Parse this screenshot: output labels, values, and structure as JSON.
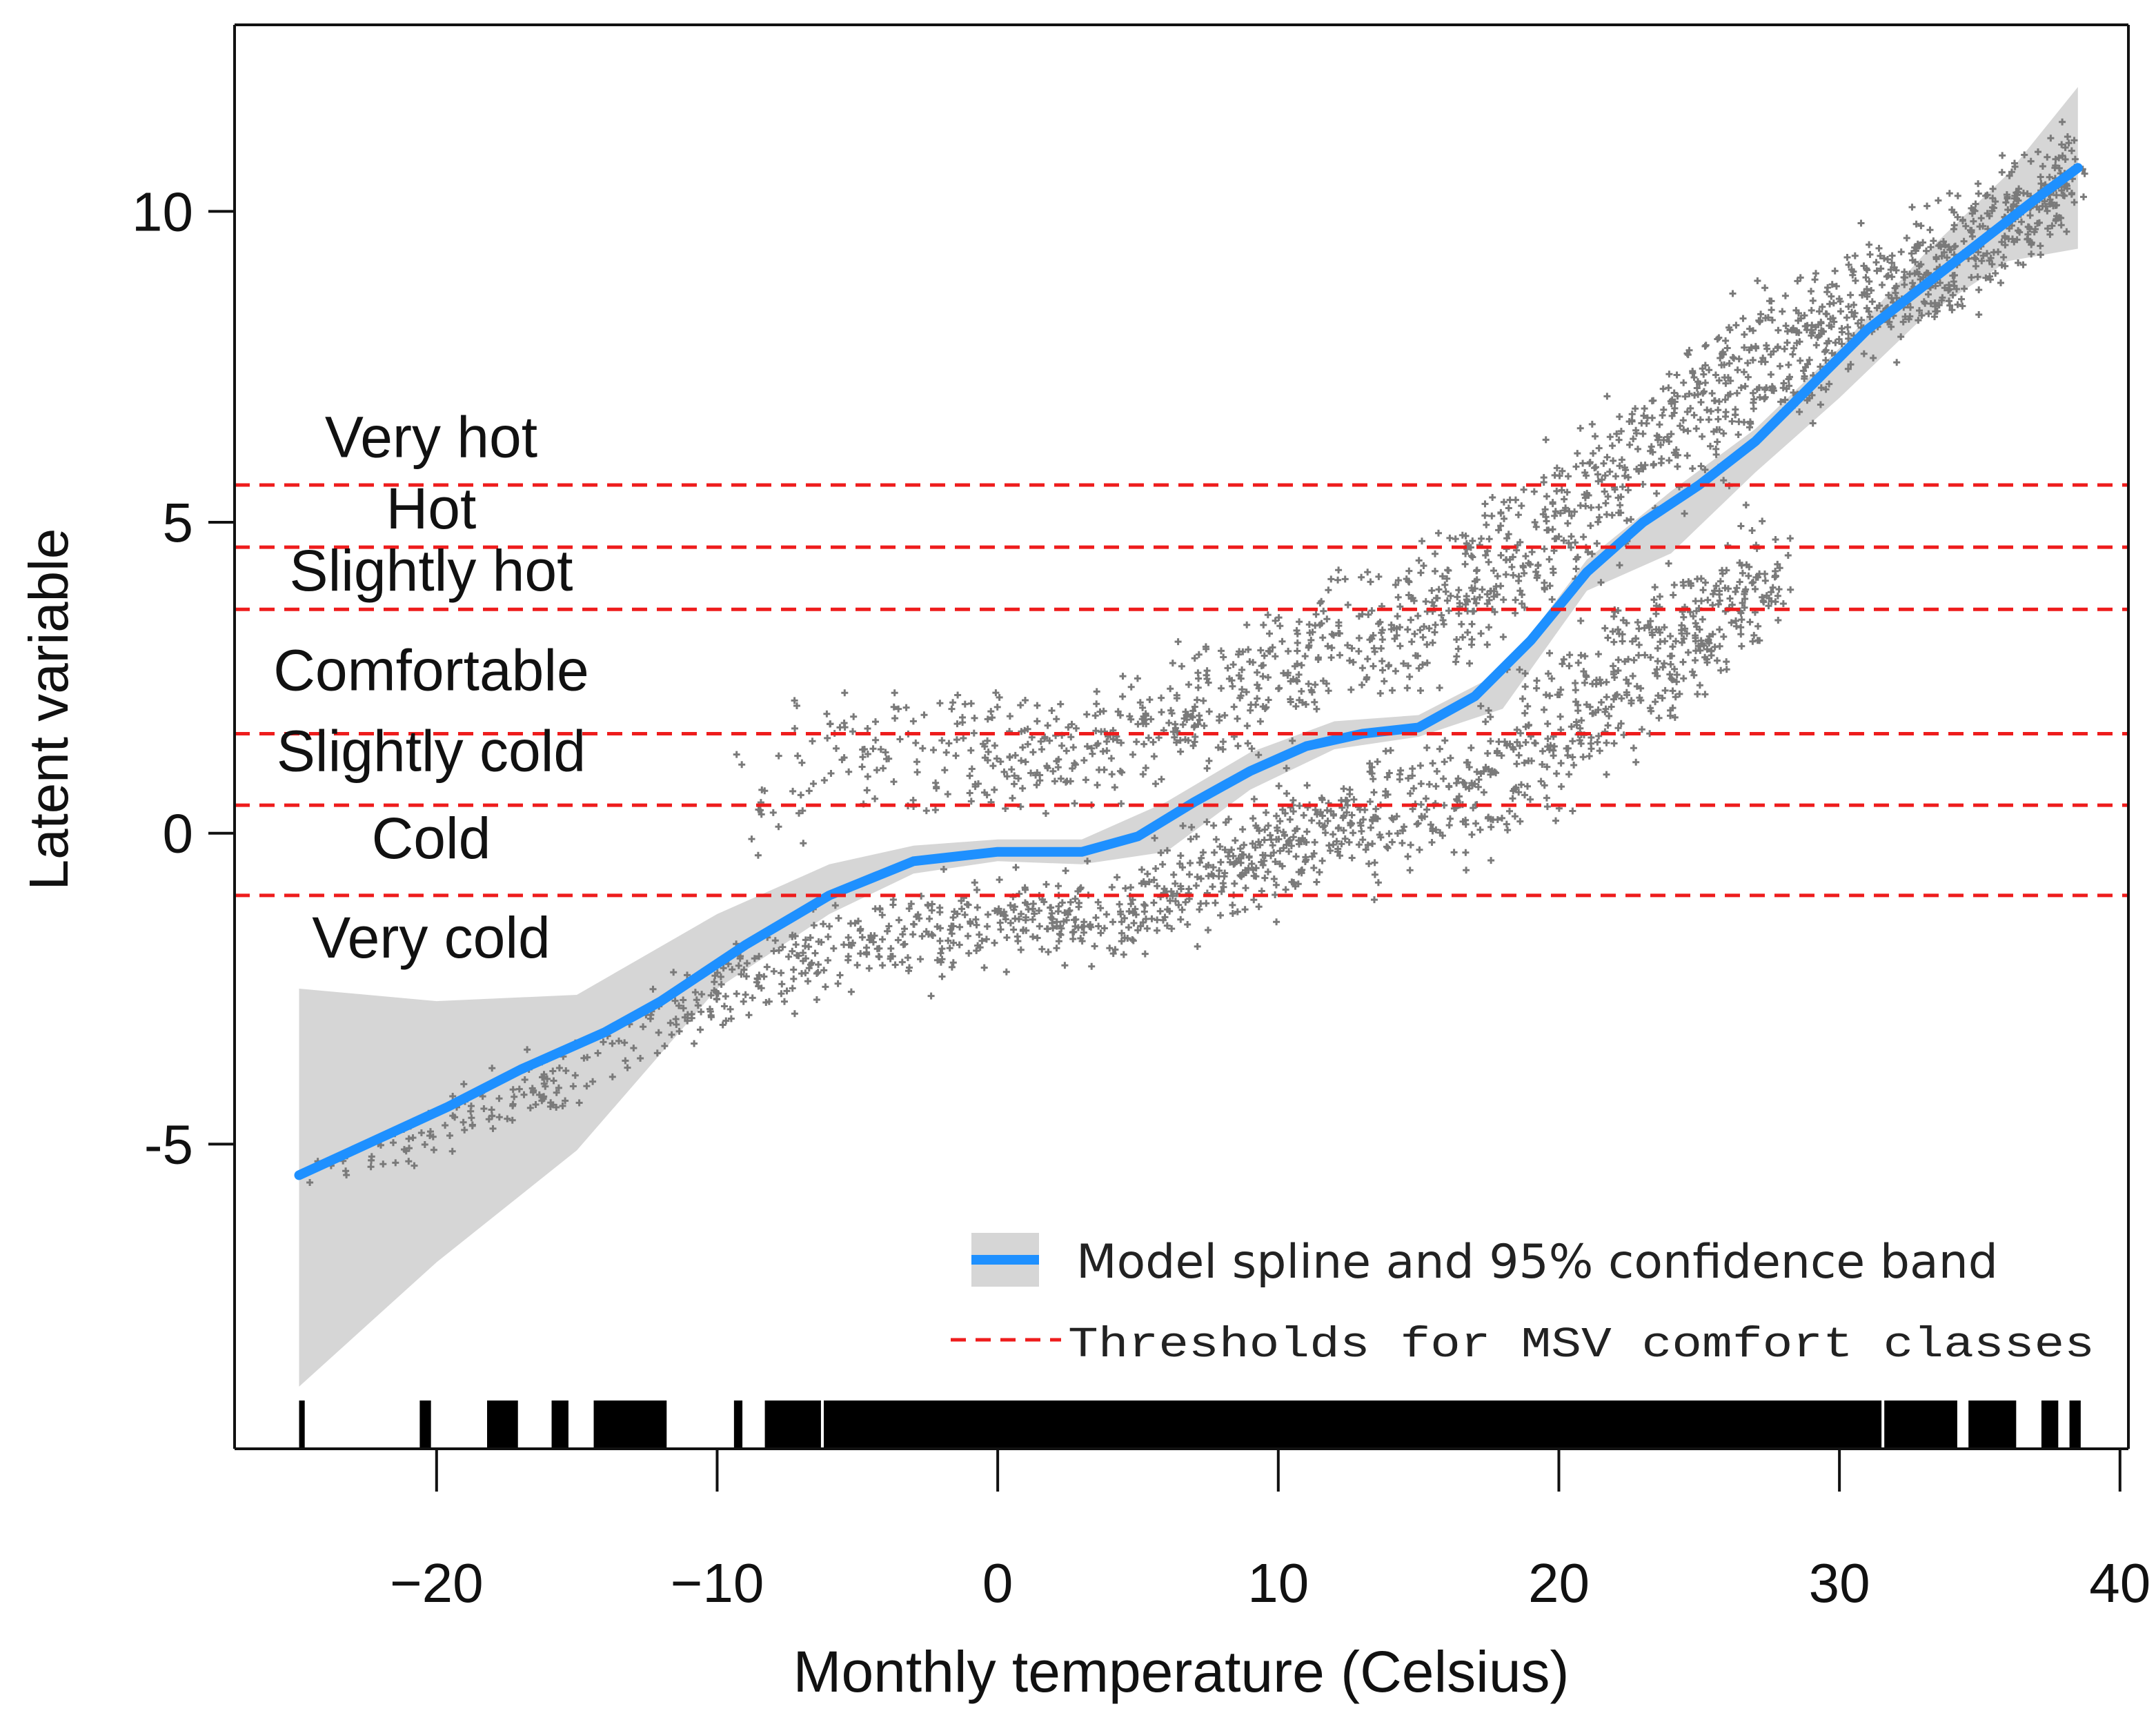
{
  "chart_data": {
    "type": "scatter",
    "xlabel": "Monthly temperature (Celsius)",
    "ylabel": "Latent variable",
    "xlim": [
      -27.2,
      40.3
    ],
    "ylim": [
      -9.9,
      13.0
    ],
    "x_ticks": [
      -20,
      -10,
      0,
      10,
      20,
      30,
      40
    ],
    "x_tick_labels": [
      "−20",
      "−10",
      "0",
      "10",
      "20",
      "30",
      "40"
    ],
    "y_ticks": [
      -5,
      0,
      5,
      10
    ],
    "y_tick_labels": [
      "-5",
      "0",
      "5",
      "10"
    ],
    "thresholds": [
      {
        "name": "Cold / Very cold",
        "y": -1.0
      },
      {
        "name": "Slightly cold / Cold",
        "y": 0.45
      },
      {
        "name": "Comfortable / Slightly cold",
        "y": 1.6
      },
      {
        "name": "Slightly hot / Comfortable",
        "y": 3.6
      },
      {
        "name": "Hot / Slightly hot",
        "y": 4.6
      },
      {
        "name": "Very hot / Hot",
        "y": 5.6
      }
    ],
    "class_labels": [
      {
        "text": "Very hot",
        "y": 6.05
      },
      {
        "text": "Hot",
        "y": 4.9
      },
      {
        "text": "Slightly hot",
        "y": 3.9
      },
      {
        "text": "Comfortable",
        "y": 2.3
      },
      {
        "text": "Slightly cold",
        "y": 1.0
      },
      {
        "text": "Cold",
        "y": -0.4
      },
      {
        "text": "Very cold",
        "y": -2.0
      }
    ],
    "spline": {
      "name": "Model spline",
      "x": [
        -24.9,
        -22,
        -19.6,
        -17,
        -14,
        -12,
        -9,
        -6,
        -3,
        0,
        3,
        5,
        7,
        9,
        11,
        13,
        15,
        17,
        19,
        21,
        23,
        25,
        27,
        29,
        31,
        33,
        35,
        37,
        38.5
      ],
      "y": [
        -5.5,
        -4.9,
        -4.4,
        -3.8,
        -3.2,
        -2.7,
        -1.8,
        -1.0,
        -0.45,
        -0.3,
        -0.3,
        -0.05,
        0.5,
        1.0,
        1.4,
        1.6,
        1.7,
        2.2,
        3.1,
        4.2,
        5.0,
        5.6,
        6.3,
        7.2,
        8.1,
        8.8,
        9.5,
        10.2,
        10.7
      ]
    },
    "band": {
      "name": "95% confidence band",
      "x": [
        -24.9,
        -20,
        -15,
        -10,
        -6,
        -3,
        0,
        3,
        6,
        9,
        12,
        15,
        18,
        21,
        24,
        27,
        30,
        33,
        36,
        38.5
      ],
      "upper": [
        -2.5,
        -2.7,
        -2.6,
        -1.3,
        -0.5,
        -0.2,
        -0.1,
        -0.1,
        0.5,
        1.3,
        1.8,
        1.9,
        2.6,
        4.4,
        5.5,
        6.5,
        7.8,
        9.3,
        10.6,
        12.0
      ],
      "lower": [
        -8.9,
        -6.9,
        -5.1,
        -2.5,
        -1.3,
        -0.65,
        -0.45,
        -0.5,
        -0.3,
        0.7,
        1.35,
        1.55,
        2.0,
        3.9,
        4.5,
        5.8,
        7.0,
        8.3,
        9.2,
        9.4
      ]
    },
    "scatter_clusters": [
      {
        "name": "upper branch",
        "x": [
          -10,
          -6,
          -3,
          0,
          3,
          6,
          9,
          12,
          15,
          18,
          21,
          24,
          27,
          30,
          33,
          36,
          38.5
        ],
        "y": [
          0.4,
          1.3,
          1.4,
          1.2,
          1.4,
          1.8,
          2.4,
          3.0,
          3.4,
          4.2,
          5.4,
          6.6,
          7.4,
          8.3,
          9.0,
          9.8,
          10.6
        ],
        "spread": [
          0.45,
          0.5,
          0.5,
          0.45,
          0.45,
          0.5,
          0.55,
          0.55,
          0.55,
          0.6,
          0.6,
          0.6,
          0.6,
          0.55,
          0.5,
          0.45,
          0.35
        ],
        "count": 1600
      },
      {
        "name": "lower branch",
        "x": [
          -24.9,
          -20,
          -15,
          -10,
          -6,
          -3,
          0,
          3,
          6,
          9,
          12,
          15,
          18,
          20,
          22,
          24,
          26,
          28
        ],
        "y": [
          -5.6,
          -4.7,
          -3.8,
          -2.6,
          -1.8,
          -1.6,
          -1.45,
          -1.3,
          -0.95,
          -0.4,
          0.1,
          0.4,
          0.9,
          1.7,
          2.4,
          3.0,
          3.6,
          4.4
        ],
        "spread": [
          0.2,
          0.25,
          0.3,
          0.35,
          0.4,
          0.4,
          0.35,
          0.35,
          0.4,
          0.45,
          0.45,
          0.5,
          0.6,
          0.65,
          0.65,
          0.6,
          0.55,
          0.5
        ],
        "count": 1400
      }
    ],
    "rug_segments": [
      [
        -24.9,
        -24.7
      ],
      [
        -20.6,
        -20.2
      ],
      [
        -18.2,
        -17.1
      ],
      [
        -15.9,
        -15.3
      ],
      [
        -14.4,
        -11.8
      ],
      [
        -9.4,
        -9.1
      ],
      [
        -8.3,
        -6.3
      ],
      [
        -6.2,
        31.5
      ],
      [
        31.6,
        34.2
      ],
      [
        34.6,
        36.3
      ],
      [
        37.2,
        37.8
      ],
      [
        38.2,
        38.6
      ]
    ],
    "legend": {
      "spline_label": "Model spline and 95% confidence band",
      "threshold_label": "Thresholds for MSV comfort classes"
    },
    "colors": {
      "spline": "#1e90ff",
      "band": "#d6d6d6",
      "points": "#7a7a7a",
      "threshold": "#ee1c1c",
      "axis": "#111111"
    }
  }
}
